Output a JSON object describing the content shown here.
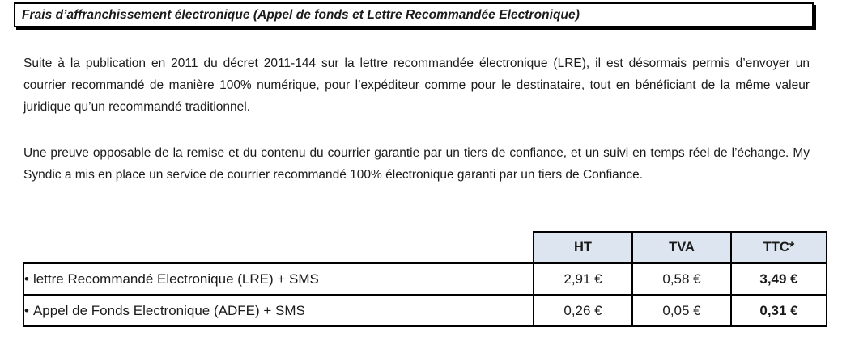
{
  "title": "Frais d’affranchissement électronique (Appel de fonds et Lettre Recommandée Electronique)",
  "paragraphs": [
    "Suite à la publication en 2011 du décret 2011-144 sur la lettre recommandée électronique (LRE), il est désormais permis d’envoyer un courrier recommandé de manière 100% numérique, pour l’expéditeur comme pour le destinataire, tout en bénéficiant de la même valeur juridique qu’un recommandé traditionnel.",
    "Une preuve opposable de la remise et du contenu du courrier garantie par un tiers de confiance, et un suivi en temps réel de l’échange. My Syndic a mis en place un service de courrier recommandé 100% électronique garanti par un tiers de Confiance."
  ],
  "table": {
    "headers": [
      "HT",
      "TVA",
      "TTC*"
    ],
    "bullet": "•",
    "rows": [
      {
        "label": "lettre Recommandé Electronique (LRE) + SMS",
        "ht": "2,91 €",
        "tva": "0,58 €",
        "ttc": "3,49 €"
      },
      {
        "label": "Appel de Fonds Electronique (ADFE) + SMS",
        "ht": "0,26 €",
        "tva": "0,05 €",
        "ttc": "0,31 €"
      }
    ]
  }
}
